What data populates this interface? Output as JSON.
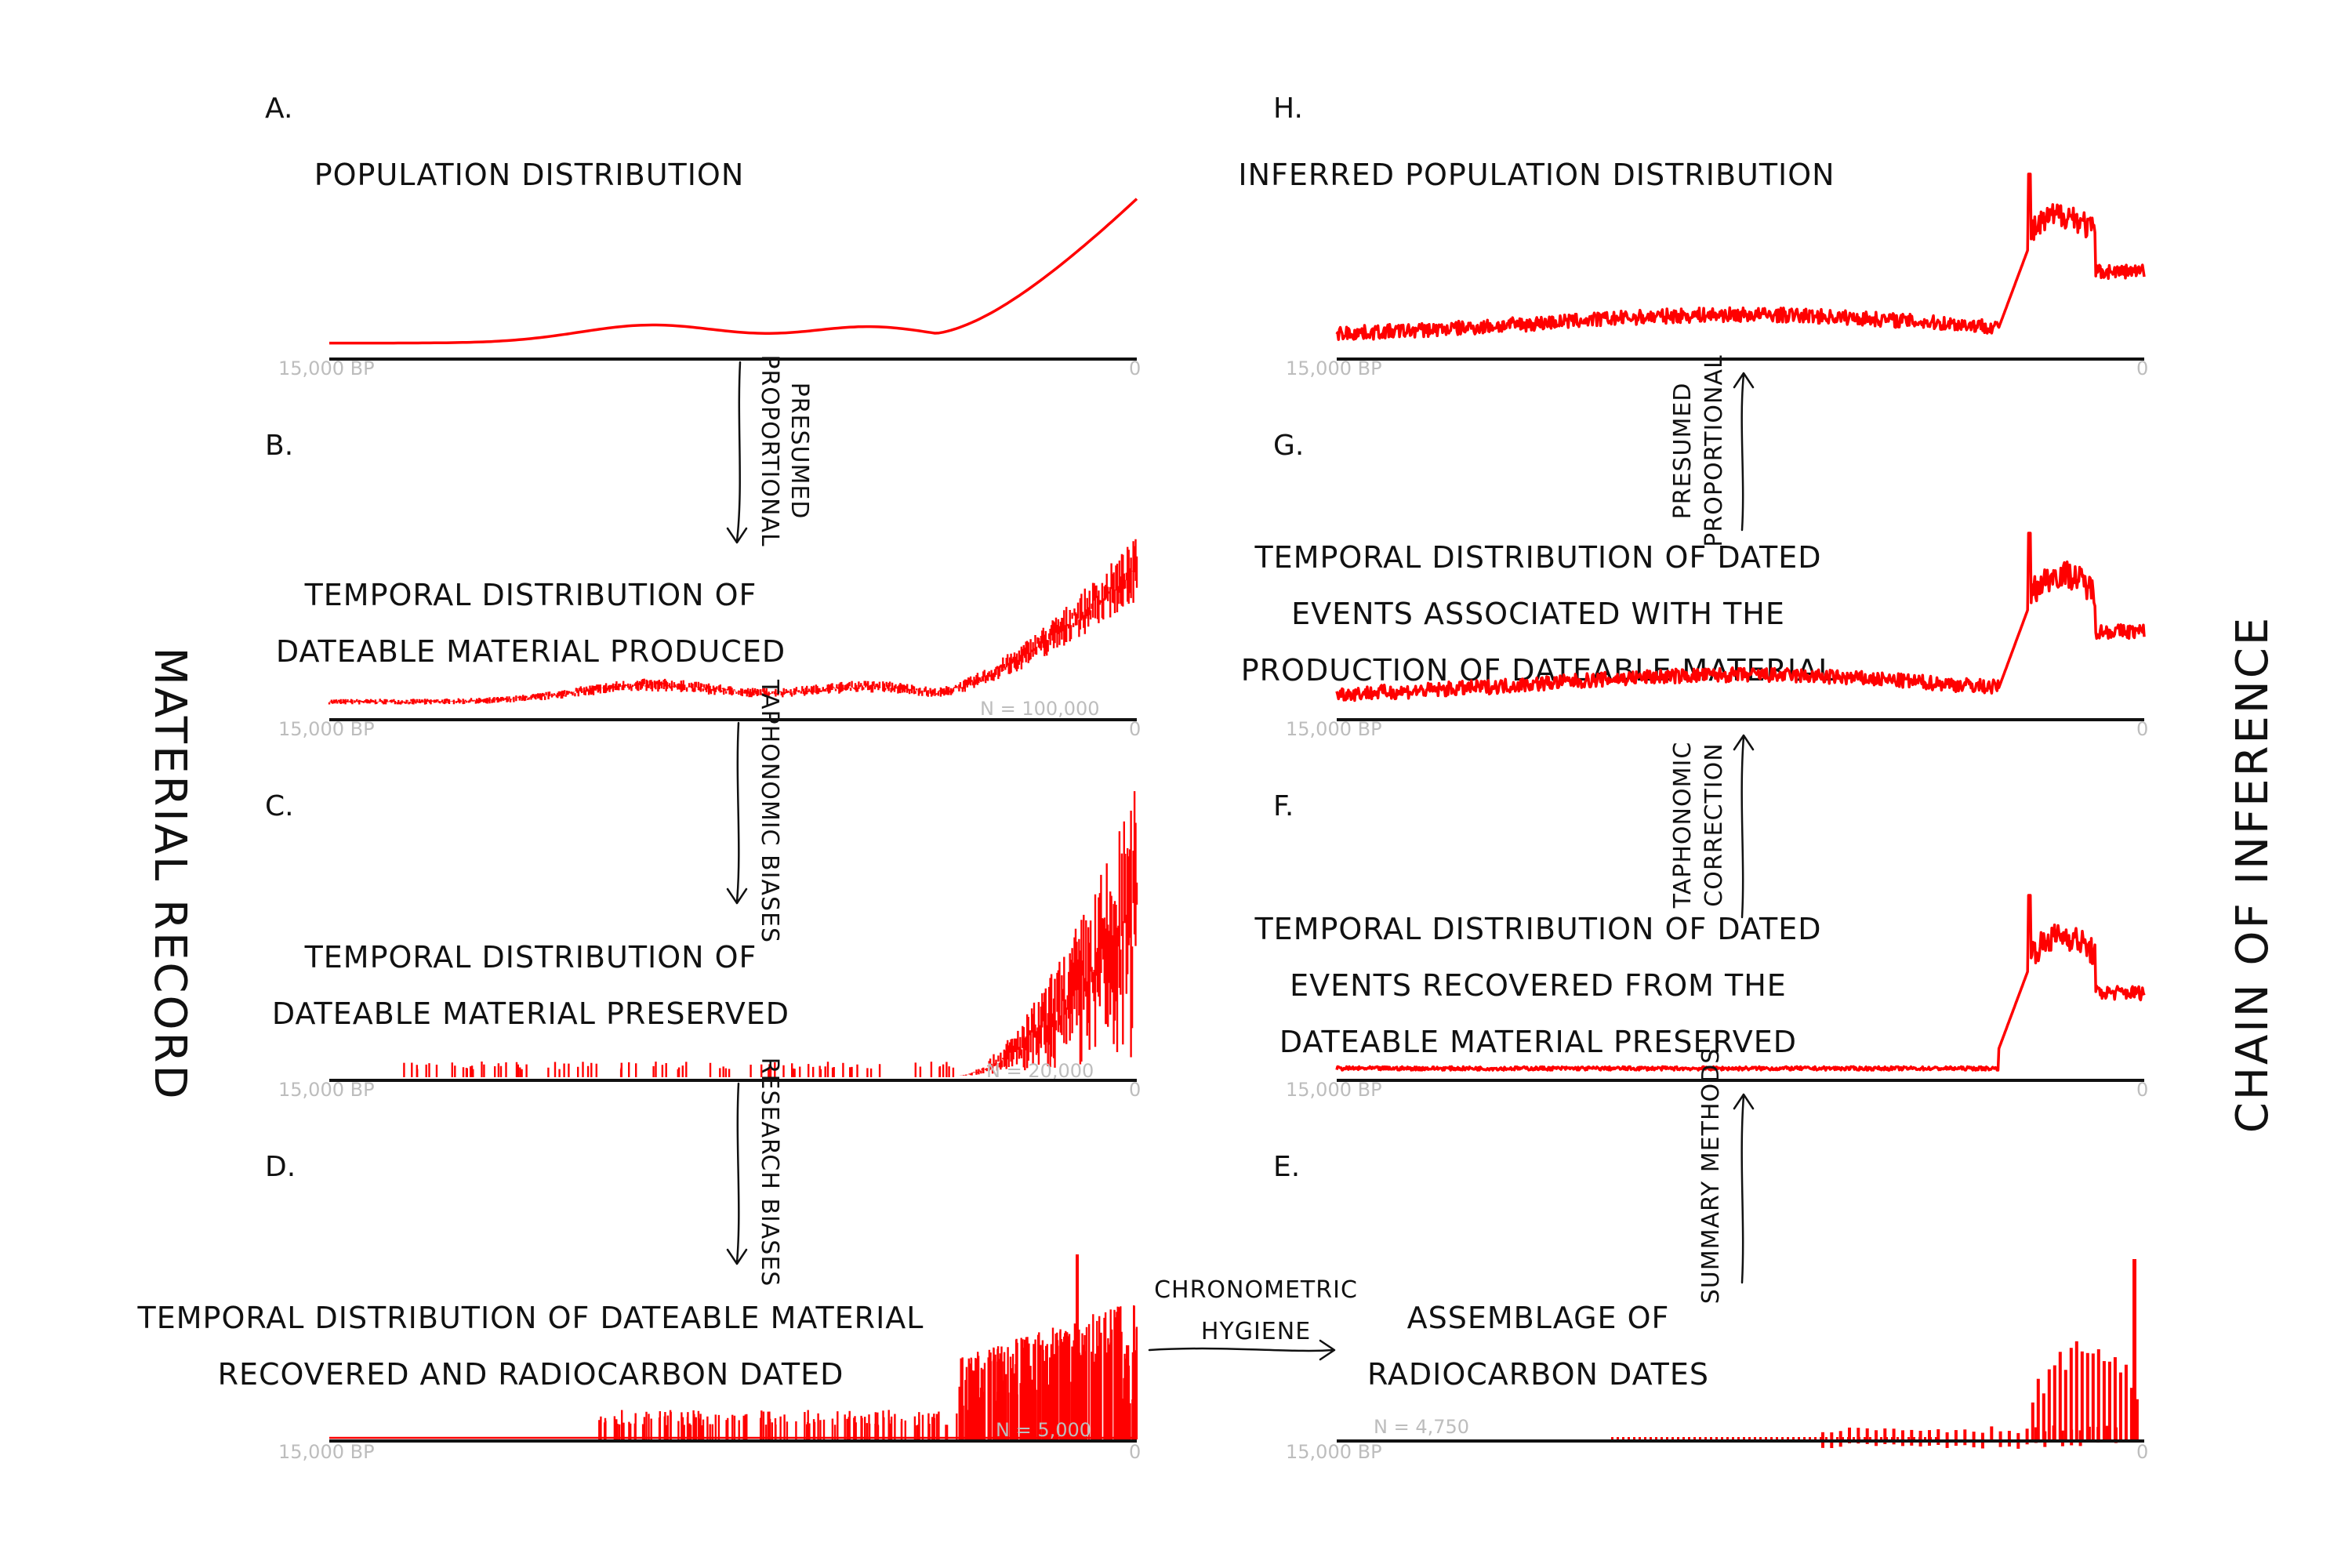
{
  "side_labels": {
    "left": "MATERIAL RECORD",
    "right": "CHAIN OF INFERENCE"
  },
  "axis_labels": {
    "start": "15,000 BP",
    "end": "0"
  },
  "panels": {
    "A": {
      "letter": "A.",
      "title": [
        "POPULATION DISTRIBUTION"
      ],
      "n": ""
    },
    "B": {
      "letter": "B.",
      "title": [
        "TEMPORAL DISTRIBUTION OF",
        "DATEABLE MATERIAL PRODUCED"
      ],
      "n": "N = 100,000"
    },
    "C": {
      "letter": "C.",
      "title": [
        "TEMPORAL DISTRIBUTION OF",
        "DATEABLE MATERIAL PRESERVED"
      ],
      "n": "N = 20,000"
    },
    "D": {
      "letter": "D.",
      "title": [
        "TEMPORAL DISTRIBUTION OF DATEABLE MATERIAL",
        "RECOVERED AND RADIOCARBON DATED"
      ],
      "n": "N = 5,000"
    },
    "E": {
      "letter": "E.",
      "title": [
        "ASSEMBLAGE OF",
        "RADIOCARBON DATES"
      ],
      "n": "N = 4,750"
    },
    "F": {
      "letter": "F.",
      "title": [
        "TEMPORAL DISTRIBUTION OF DATED",
        "EVENTS RECOVERED FROM THE",
        "DATEABLE MATERIAL PRESERVED"
      ],
      "n": ""
    },
    "G": {
      "letter": "G.",
      "title": [
        "TEMPORAL DISTRIBUTION OF DATED",
        "EVENTS ASSOCIATED WITH THE",
        "PRODUCTION OF DATEABLE MATERIAL"
      ],
      "n": ""
    },
    "H": {
      "letter": "H.",
      "title": [
        "INFERRED POPULATION DISTRIBUTION"
      ],
      "n": ""
    }
  },
  "arrows": {
    "a_b": [
      "PRESUMED",
      "PROPORTIONAL"
    ],
    "b_c": [
      "TAPHONOMIC BIASES"
    ],
    "c_d": [
      "RESEARCH BIASES"
    ],
    "d_e": [
      "CHRONOMETRIC",
      "HYGIENE"
    ],
    "e_f": [
      "SUMMARY METHODS"
    ],
    "f_g": [
      "TAPHONOMIC",
      "CORRECTION"
    ],
    "g_h": [
      "PRESUMED",
      "PROPORTIONAL"
    ]
  },
  "colors": {
    "series": "#ff0000",
    "axis": "#111111",
    "tick": "#bdbdbd"
  }
}
